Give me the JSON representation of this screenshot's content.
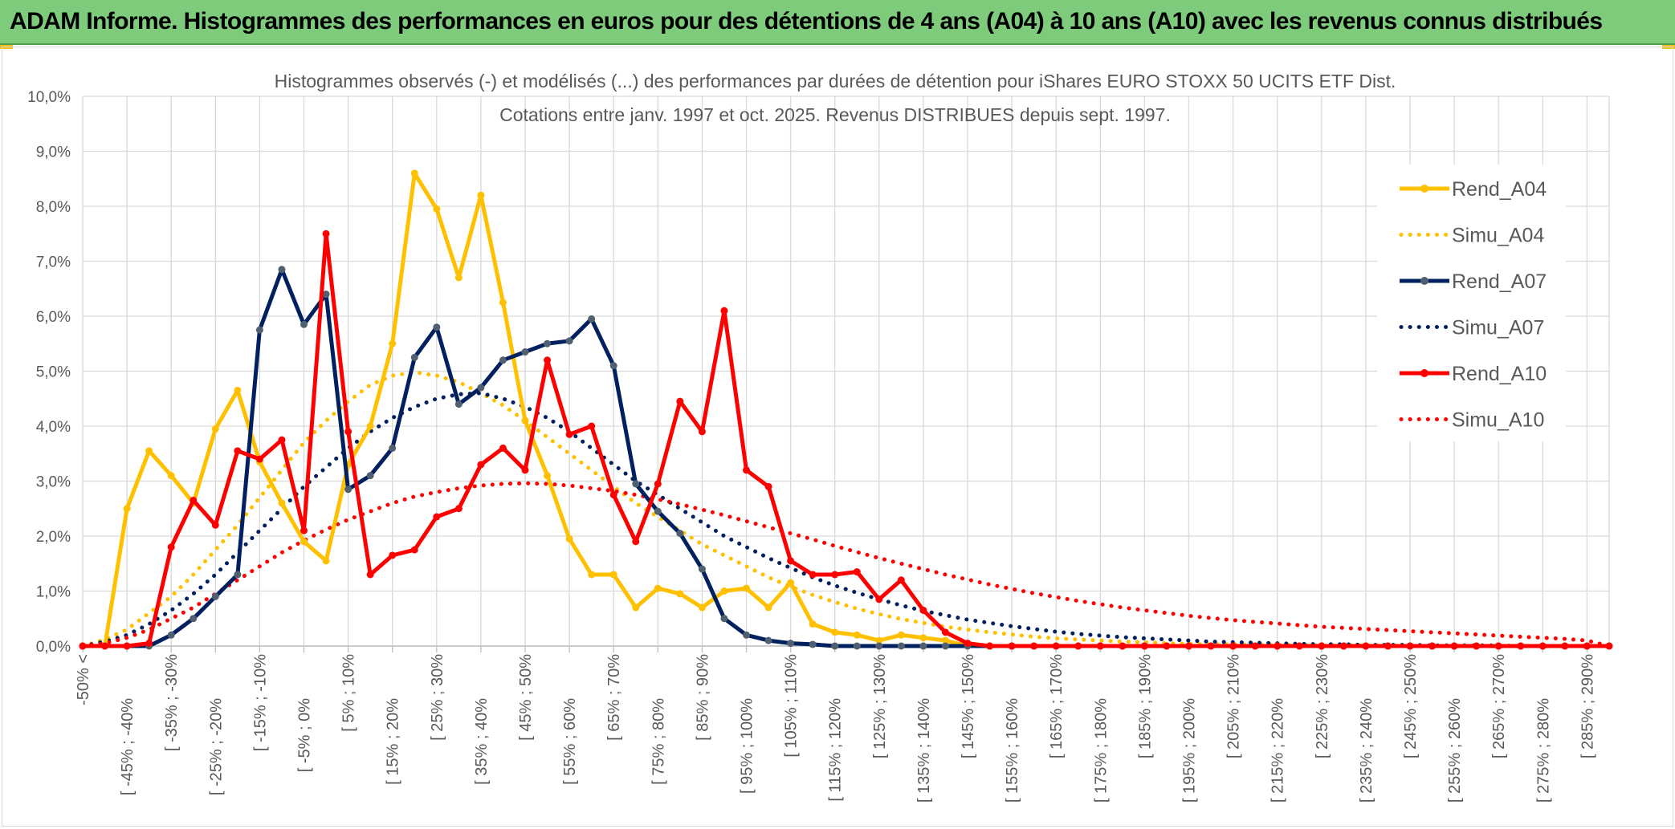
{
  "banner": {
    "title": "ADAM Informe. Histogrammes des performances en euros pour des détentions de 4 ans (A04) à 10 ans (A10) avec les revenus connus distribués"
  },
  "colors": {
    "banner": "#7DCB7B",
    "A04": "#FFC000",
    "A07": "#002060",
    "A07_marker": "#506070",
    "A10": "#FF0000",
    "grid": "#D9D9D9",
    "text": "#595959"
  },
  "chart_data": {
    "type": "line",
    "title_line1": "Histogrammes observés (-) et modélisés (...) des performances par durées de détention pour iShares EURO STOXX 50 UCITS ETF Dist.",
    "title_line2": "Cotations entre janv. 1997 et oct. 2025. Revenus DISTRIBUES depuis sept. 1997.",
    "y_ticks": [
      "0,0%",
      "1,0%",
      "2,0%",
      "3,0%",
      "4,0%",
      "5,0%",
      "6,0%",
      "7,0%",
      "8,0%",
      "9,0%",
      "10,0%"
    ],
    "ylim": [
      0,
      10
    ],
    "grid": true,
    "legend_position": "right",
    "x_tick_labels": [
      "-50% <",
      "[ -45% ; -40%",
      "[ -35% ; -30%",
      "[ -25% ; -20%",
      "[ -15% ; -10%",
      "[ -5% ; 0%",
      "[ 5% ; 10%",
      "[ 15% ; 20%",
      "[ 25% ; 30%",
      "[ 35% ; 40%",
      "[ 45% ; 50%",
      "[ 55% ; 60%",
      "[ 65% ; 70%",
      "[ 75% ; 80%",
      "[ 85% ; 90%",
      "[ 95% ; 100%",
      "[ 105% ; 110%",
      "[ 115% ; 120%",
      "[ 125% ; 130%",
      "[ 135% ; 140%",
      "[ 145% ; 150%",
      "[ 155% ; 160%",
      "[ 165% ; 170%",
      "[ 175% ; 180%",
      "[ 185% ; 190%",
      "[ 195% ; 200%",
      "[ 205% ; 210%",
      "[ 215% ; 220%",
      "[ 225% ; 230%",
      "[ 235% ; 240%",
      "[ 245% ; 250%",
      "[ 255% ; 260%",
      "[ 265% ; 270%",
      "[ 275% ; 280%",
      "[ 285% ; 290%"
    ],
    "n_points": 70,
    "series": [
      {
        "name": "Rend_A04",
        "style": "solid",
        "color": "#FFC000",
        "values": [
          0,
          0,
          2.5,
          3.55,
          3.1,
          2.6,
          3.95,
          4.65,
          3.35,
          2.6,
          1.9,
          1.55,
          3.3,
          4,
          5.5,
          8.6,
          7.95,
          6.7,
          8.2,
          6.25,
          4.1,
          3.1,
          1.95,
          1.3,
          1.3,
          0.7,
          1.05,
          0.95,
          0.7,
          1,
          1.05,
          0.7,
          1.15,
          0.4,
          0.25,
          0.2,
          0.1,
          0.2,
          0.15,
          0.1,
          0,
          0,
          0,
          0,
          0,
          0,
          0,
          0,
          0,
          0,
          0,
          0,
          0,
          0,
          0,
          0,
          0,
          0,
          0,
          0,
          0,
          0,
          0,
          0,
          0,
          0,
          0,
          0,
          0,
          0
        ]
      },
      {
        "name": "Simu_A04",
        "style": "dotted",
        "color": "#FFC000",
        "values": [
          0,
          0.12,
          0.3,
          0.6,
          0.9,
          1.3,
          1.75,
          2.2,
          2.7,
          3.2,
          3.7,
          4.1,
          4.45,
          4.75,
          4.92,
          4.98,
          4.92,
          4.8,
          4.6,
          4.38,
          4.1,
          3.8,
          3.5,
          3.2,
          2.9,
          2.6,
          2.35,
          2.1,
          1.85,
          1.65,
          1.45,
          1.25,
          1.08,
          0.93,
          0.8,
          0.68,
          0.58,
          0.49,
          0.42,
          0.35,
          0.3,
          0.25,
          0.21,
          0.17,
          0.14,
          0.12,
          0.1,
          0.08,
          0.07,
          0.05,
          0.04,
          0.03,
          0.03,
          0.02,
          0.02,
          0.02,
          0.01,
          0.01,
          0.01,
          0.01,
          0,
          0,
          0,
          0,
          0,
          0,
          0,
          0,
          0,
          0
        ]
      },
      {
        "name": "Rend_A07",
        "style": "solid",
        "color": "#002060",
        "values": [
          0,
          0,
          0,
          0,
          0.2,
          0.5,
          0.9,
          1.3,
          5.75,
          6.85,
          5.85,
          6.4,
          2.85,
          3.1,
          3.6,
          5.25,
          5.8,
          4.4,
          4.7,
          5.2,
          5.35,
          5.5,
          5.55,
          5.95,
          5.1,
          2.95,
          2.45,
          2.05,
          1.4,
          0.5,
          0.2,
          0.1,
          0.05,
          0.03,
          0,
          0,
          0,
          0,
          0,
          0,
          0,
          0,
          0,
          0,
          0,
          0,
          0,
          0,
          0,
          0,
          0,
          0,
          0,
          0,
          0,
          0,
          0,
          0,
          0,
          0,
          0,
          0,
          0,
          0,
          0,
          0,
          0,
          0,
          0,
          0
        ]
      },
      {
        "name": "Simu_A07",
        "style": "dotted",
        "color": "#002060",
        "values": [
          0,
          0.08,
          0.2,
          0.4,
          0.65,
          0.95,
          1.3,
          1.7,
          2.1,
          2.5,
          2.9,
          3.25,
          3.6,
          3.9,
          4.15,
          4.35,
          4.5,
          4.58,
          4.6,
          4.5,
          4.35,
          4.15,
          3.9,
          3.6,
          3.3,
          3.0,
          2.75,
          2.5,
          2.25,
          2.0,
          1.8,
          1.6,
          1.42,
          1.25,
          1.1,
          0.97,
          0.85,
          0.74,
          0.64,
          0.56,
          0.48,
          0.42,
          0.36,
          0.31,
          0.26,
          0.22,
          0.19,
          0.16,
          0.14,
          0.12,
          0.1,
          0.08,
          0.07,
          0.06,
          0.05,
          0.04,
          0.03,
          0.03,
          0.02,
          0.02,
          0.02,
          0.01,
          0.01,
          0.01,
          0.01,
          0,
          0,
          0,
          0,
          0
        ]
      },
      {
        "name": "Rend_A10",
        "style": "solid",
        "color": "#FF0000",
        "values": [
          0,
          0,
          0,
          0.05,
          1.8,
          2.65,
          2.2,
          3.55,
          3.4,
          3.75,
          2.1,
          7.5,
          3.9,
          1.3,
          1.65,
          1.75,
          2.35,
          2.5,
          3.3,
          3.6,
          3.2,
          5.2,
          3.85,
          4,
          2.75,
          1.9,
          2.95,
          4.45,
          3.9,
          6.1,
          3.2,
          2.9,
          1.55,
          1.3,
          1.3,
          1.35,
          0.85,
          1.2,
          0.65,
          0.25,
          0.05,
          0,
          0,
          0,
          0,
          0,
          0,
          0,
          0,
          0,
          0,
          0,
          0,
          0,
          0,
          0,
          0,
          0,
          0,
          0,
          0,
          0,
          0,
          0,
          0,
          0,
          0,
          0,
          0,
          0
        ]
      },
      {
        "name": "Simu_A10",
        "style": "dotted",
        "color": "#FF0000",
        "values": [
          0,
          0.05,
          0.15,
          0.3,
          0.5,
          0.7,
          0.95,
          1.2,
          1.45,
          1.7,
          1.92,
          2.12,
          2.3,
          2.45,
          2.6,
          2.72,
          2.8,
          2.87,
          2.92,
          2.95,
          2.96,
          2.95,
          2.92,
          2.87,
          2.82,
          2.75,
          2.67,
          2.58,
          2.48,
          2.38,
          2.27,
          2.16,
          2.05,
          1.94,
          1.82,
          1.71,
          1.6,
          1.5,
          1.4,
          1.3,
          1.21,
          1.12,
          1.04,
          0.96,
          0.89,
          0.82,
          0.76,
          0.7,
          0.65,
          0.6,
          0.55,
          0.51,
          0.47,
          0.44,
          0.41,
          0.38,
          0.35,
          0.33,
          0.31,
          0.29,
          0.27,
          0.25,
          0.23,
          0.21,
          0.19,
          0.17,
          0.15,
          0.13,
          0.1,
          0
        ]
      }
    ]
  }
}
